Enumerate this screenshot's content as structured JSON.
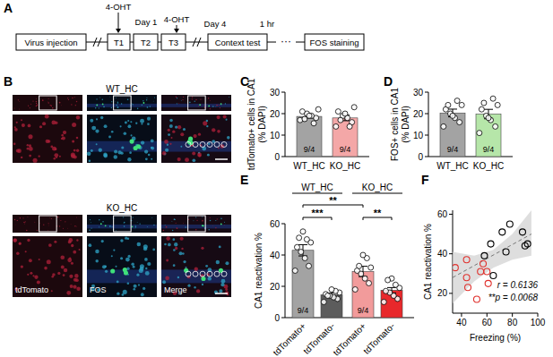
{
  "timeline": {
    "label": "A",
    "boxes": [
      "Virus injection",
      "T1",
      "T2",
      "T3",
      "Context test",
      "FOS staining"
    ],
    "drug": "4-OHT",
    "notes": [
      "Day 1",
      "Day 4",
      "1 hr"
    ],
    "ellipsis": "···"
  },
  "images": {
    "label": "B",
    "groups": [
      "WT_HC",
      "KO_HC"
    ],
    "channels": [
      "tdTomato",
      "FOS",
      "Merge"
    ]
  },
  "chart_data": [
    {
      "type": "bar",
      "title": "C",
      "y_label": [
        "tdTomato+ cells in CA1",
        "(% DAPI)"
      ],
      "categories": [
        "WT_HC",
        "KO_HC"
      ],
      "values": [
        18.7,
        18.0
      ],
      "errors": [
        0.8,
        1.3
      ],
      "colors": [
        "#a3a3a3",
        "#f4a7a7"
      ],
      "points": [
        [
          17,
          18,
          19,
          20,
          21,
          22,
          15.5,
          19,
          17.5
        ],
        [
          14,
          16,
          18,
          19,
          21,
          23,
          14,
          20,
          17
        ]
      ],
      "n_labels": [
        "9/4",
        "9/4"
      ],
      "ylim": [
        0,
        30
      ],
      "yticks": [
        0,
        10,
        20,
        30
      ]
    },
    {
      "type": "bar",
      "title": "D",
      "y_label": [
        "FOS+ cells in CA1",
        "(% DAPI)"
      ],
      "categories": [
        "WT_HC",
        "KO_HC"
      ],
      "values": [
        20.3,
        19.8
      ],
      "errors": [
        1.8,
        2.2
      ],
      "colors": [
        "#a3a3a3",
        "#b6e6a9"
      ],
      "points": [
        [
          14,
          16,
          18,
          20,
          22,
          24,
          26,
          19,
          24
        ],
        [
          11,
          14,
          17,
          19,
          22,
          24,
          27,
          18,
          25
        ]
      ],
      "n_labels": [
        "9/4",
        "9/4"
      ],
      "ylim": [
        0,
        30
      ],
      "yticks": [
        0,
        10,
        20,
        30
      ]
    },
    {
      "type": "bar",
      "title": "E",
      "y_label": [
        "CA1 reactivation %"
      ],
      "categories": [
        "tdTomato+",
        "tdTomato-",
        "tdTomato+",
        "tdTomato-"
      ],
      "values": [
        43,
        14.5,
        29.5,
        17.5
      ],
      "errors": [
        3.6,
        1.2,
        3.3,
        1.7
      ],
      "colors": [
        "#a3a3a3",
        "#5c5c5c",
        "#f29b9b",
        "#e8282b"
      ],
      "points": [
        [
          30,
          33,
          38,
          42,
          45,
          48,
          50,
          55,
          51
        ],
        [
          10,
          12,
          13,
          14,
          15,
          16,
          17,
          18,
          14
        ],
        [
          18,
          22,
          25,
          28,
          30,
          32,
          38,
          40,
          33
        ],
        [
          10,
          12,
          14,
          16,
          17,
          19,
          21,
          25,
          24
        ]
      ],
      "n_labels": [
        "9/4",
        null,
        "9/4",
        null
      ],
      "groups": [
        {
          "label": "WT_HC",
          "from": 0,
          "to": 1
        },
        {
          "label": "KO_HC",
          "from": 2,
          "to": 3
        }
      ],
      "significance": [
        {
          "from": 0,
          "to": 1,
          "label": "***"
        },
        {
          "from": 0,
          "to": 2,
          "label": "**"
        },
        {
          "from": 2,
          "to": 3,
          "label": "**"
        }
      ],
      "ylim": [
        0,
        60
      ],
      "yticks": [
        0,
        20,
        40,
        60
      ]
    },
    {
      "type": "scatter",
      "title": "F",
      "x_label": "Freezing (%)",
      "y_label": [
        "CA1 reactivation %"
      ],
      "series": [
        {
          "color": "#000000",
          "marker": "circle_open",
          "x": [
            58,
            63,
            65,
            72,
            75,
            78,
            88,
            90,
            92
          ],
          "values": [
            39,
            45,
            29,
            51,
            41,
            55,
            51,
            44,
            45
          ]
        },
        {
          "color": "#e0302c",
          "marker": "circle_open",
          "x": [
            35,
            44,
            44,
            45,
            52,
            55,
            57,
            60,
            61
          ],
          "values": [
            33,
            37,
            28,
            23,
            17,
            31,
            35,
            31,
            25
          ]
        }
      ],
      "fit": {
        "x": [
          33,
          95
        ],
        "y": [
          28,
          50
        ]
      },
      "ci_band": {
        "x": [
          33,
          50,
          65,
          80,
          95
        ],
        "lower": [
          15,
          26,
          33,
          37,
          39
        ],
        "upper": [
          41,
          39,
          42,
          50,
          62
        ]
      },
      "annotations": [
        "r = 0.6136",
        "**p = 0.0068"
      ],
      "xlim": [
        33,
        100
      ],
      "xticks": [
        40,
        60,
        80,
        100
      ],
      "ylim": [
        10,
        62
      ],
      "yticks": [
        20,
        40,
        60
      ]
    }
  ]
}
